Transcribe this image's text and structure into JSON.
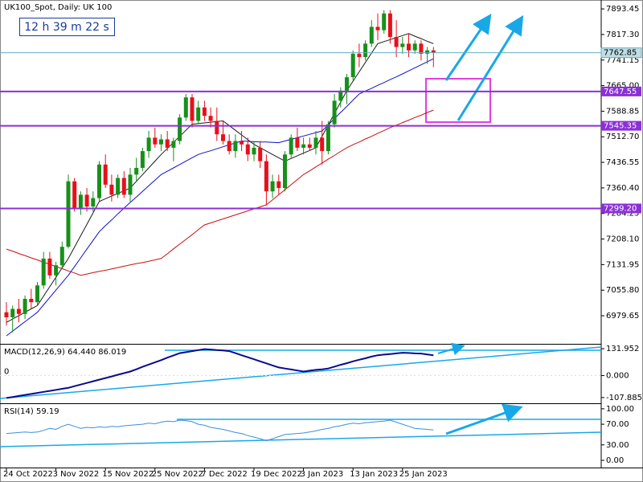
{
  "chart_data": [
    {
      "type": "candlestick",
      "title": "UK100_Spot, Daily:  UK 100",
      "timer": "12 h 39 m 22 s",
      "categories": [
        "24 Oct 2022",
        null,
        null,
        null,
        null,
        null,
        null,
        null,
        "3 Nov 2022",
        null,
        null,
        null,
        null,
        null,
        null,
        null,
        "15 Nov 2022",
        null,
        null,
        null,
        null,
        null,
        null,
        null,
        "25 Nov 2022",
        null,
        null,
        null,
        null,
        null,
        null,
        null,
        "7 Dec 2022",
        null,
        null,
        null,
        null,
        null,
        null,
        null,
        "19 Dec 2022",
        null,
        null,
        null,
        null,
        null,
        null,
        null,
        "3 Jan 2023",
        null,
        null,
        null,
        null,
        null,
        null,
        null,
        "13 Jan 2023",
        null,
        null,
        null,
        null,
        null,
        null,
        null,
        "25 Jan 2023",
        null,
        null,
        null,
        null,
        null
      ],
      "open": [
        6990,
        6975,
        7000,
        6985,
        7030,
        7020,
        7070,
        7150,
        7100,
        7130,
        7185,
        7380,
        7300,
        7340,
        7305,
        7330,
        7430,
        7370,
        7340,
        7390,
        7340,
        7400,
        7420,
        7470,
        7510,
        7490,
        7505,
        7480,
        7500,
        7570,
        7630,
        7560,
        7600,
        7575,
        7560,
        7520,
        7500,
        7470,
        7500,
        7490,
        7460,
        7480,
        7440,
        7350,
        7380,
        7360,
        7460,
        7510,
        7480,
        7490,
        7480,
        7510,
        7470,
        7550,
        7620,
        7650,
        7690,
        7760,
        7750,
        7790,
        7840,
        7830,
        7880,
        7810,
        7780,
        7790,
        7770,
        7790,
        7760,
        7770
      ],
      "high": [
        7020,
        7010,
        7030,
        7040,
        7060,
        7080,
        7170,
        7170,
        7140,
        7200,
        7400,
        7390,
        7350,
        7360,
        7350,
        7440,
        7460,
        7400,
        7400,
        7410,
        7420,
        7450,
        7480,
        7530,
        7540,
        7520,
        7530,
        7510,
        7580,
        7640,
        7640,
        7620,
        7620,
        7600,
        7600,
        7560,
        7520,
        7520,
        7530,
        7510,
        7500,
        7500,
        7460,
        7400,
        7400,
        7470,
        7520,
        7540,
        7510,
        7510,
        7530,
        7560,
        7560,
        7640,
        7660,
        7700,
        7770,
        7790,
        7800,
        7860,
        7880,
        7890,
        7890,
        7860,
        7810,
        7820,
        7800,
        7800,
        7780,
        7780
      ],
      "low": [
        6950,
        6930,
        6960,
        6970,
        7000,
        7010,
        7060,
        7090,
        7070,
        7120,
        7180,
        7290,
        7280,
        7290,
        7290,
        7320,
        7360,
        7320,
        7330,
        7330,
        7320,
        7380,
        7410,
        7450,
        7480,
        7470,
        7470,
        7440,
        7490,
        7560,
        7540,
        7550,
        7560,
        7540,
        7500,
        7490,
        7460,
        7450,
        7470,
        7440,
        7440,
        7420,
        7310,
        7330,
        7340,
        7350,
        7450,
        7470,
        7460,
        7470,
        7460,
        7430,
        7460,
        7540,
        7600,
        7610,
        7680,
        7720,
        7740,
        7780,
        7800,
        7820,
        7790,
        7750,
        7760,
        7750,
        7760,
        7740,
        7730,
        7720
      ],
      "close": [
        6975,
        7000,
        6985,
        7030,
        7020,
        7070,
        7150,
        7100,
        7130,
        7185,
        7380,
        7300,
        7340,
        7305,
        7330,
        7430,
        7370,
        7340,
        7390,
        7340,
        7400,
        7420,
        7470,
        7510,
        7490,
        7505,
        7480,
        7500,
        7570,
        7630,
        7560,
        7600,
        7575,
        7560,
        7520,
        7500,
        7470,
        7500,
        7490,
        7460,
        7480,
        7440,
        7350,
        7380,
        7360,
        7460,
        7510,
        7480,
        7490,
        7480,
        7510,
        7470,
        7550,
        7620,
        7650,
        7690,
        7760,
        7750,
        7790,
        7840,
        7830,
        7880,
        7810,
        7780,
        7790,
        7770,
        7790,
        7760,
        7770,
        7763
      ],
      "up_color": "#17901a",
      "down_color": "#e8101a",
      "moving_averages": [
        {
          "color": "#1a1a1a",
          "values": [
            6960,
            6970,
            6980,
            6990,
            7000,
            7010,
            7038,
            7066,
            7094,
            7122,
            7150,
            7184,
            7218,
            7252,
            7286,
            7320,
            7328,
            7336,
            7344,
            7352,
            7360,
            7380,
            7400,
            7420,
            7440,
            7460,
            7478,
            7496,
            7514,
            7532,
            7550,
            7552,
            7554,
            7556,
            7558,
            7560,
            7546,
            7532,
            7518,
            7504,
            7490,
            7480,
            7470,
            7460,
            7450,
            7440,
            7448,
            7456,
            7464,
            7472,
            7480,
            7514,
            7548,
            7582,
            7616,
            7650,
            7678,
            7706,
            7734,
            7762,
            7790,
            7796,
            7802,
            7808,
            7814,
            7820,
            7812,
            7805,
            7797,
            7790
          ]
        },
        {
          "color": "#1010c8",
          "values": [
            6920,
            6934,
            6948,
            6962,
            6976,
            6990,
            7012,
            7034,
            7056,
            7078,
            7100,
            7126,
            7152,
            7178,
            7204,
            7230,
            7248,
            7265,
            7283,
            7300,
            7317,
            7333,
            7350,
            7367,
            7383,
            7400,
            7410,
            7420,
            7430,
            7440,
            7450,
            7460,
            7466,
            7471,
            7477,
            7483,
            7489,
            7494,
            7500,
            7499,
            7498,
            7497,
            7497,
            7496,
            7495,
            7500,
            7505,
            7510,
            7515,
            7520,
            7525,
            7530,
            7548,
            7567,
            7585,
            7603,
            7622,
            7640,
            7649,
            7657,
            7666,
            7674,
            7683,
            7691,
            7700,
            7709,
            7718,
            7727,
            7736,
            7745
          ]
        },
        {
          "color": "#c81010",
          "values": [
            7178,
            7172,
            7165,
            7159,
            7152,
            7146,
            7139,
            7133,
            7126,
            7120,
            7113,
            7107,
            7100,
            7104,
            7108,
            7112,
            7115,
            7119,
            7123,
            7127,
            7131,
            7135,
            7138,
            7142,
            7146,
            7150,
            7164,
            7179,
            7193,
            7207,
            7221,
            7236,
            7250,
            7256,
            7262,
            7268,
            7274,
            7280,
            7286,
            7292,
            7298,
            7304,
            7310,
            7325,
            7340,
            7355,
            7370,
            7385,
            7400,
            7411,
            7423,
            7434,
            7446,
            7457,
            7469,
            7480,
            7489,
            7497,
            7506,
            7514,
            7523,
            7531,
            7540,
            7547,
            7555,
            7562,
            7570,
            7577,
            7585,
            7592
          ]
        }
      ],
      "current_price": 7762.85,
      "price_line_color": "#5fb0c0",
      "levels": [
        7647.55,
        7545.35,
        {
          "value": 7299.2,
          "label": "7299.20"
        }
      ],
      "level_color": "#8c2fd8",
      "ylim": [
        6896,
        7920
      ],
      "yticks": [
        7893.45,
        {
          "value": 7817.3,
          "label": "7817.30"
        },
        7741.15,
        {
          "value": 7665.0,
          "label": "7665.00"
        },
        7588.85,
        {
          "value": 7512.7,
          "label": "7512.70"
        },
        7436.55,
        {
          "value": 7360.4,
          "label": "7360.40"
        },
        7284.25,
        {
          "value": 7208.1,
          "label": "7208.10"
        },
        7131.95,
        {
          "value": 7055.8,
          "label": "7055.80"
        },
        6979.65
      ]
    },
    {
      "type": "line",
      "title": "MACD(12,26,9) 64.440 86.019",
      "color": "#0a0a8c",
      "values": [
        -110,
        -105,
        -100,
        -95,
        -90,
        -85,
        -80,
        -75,
        -70,
        -65,
        -60,
        -52,
        -44,
        -36,
        -28,
        -20,
        -12,
        -4,
        4,
        12,
        20,
        31,
        43,
        54,
        65,
        76,
        88,
        99,
        110,
        115,
        120,
        125,
        130,
        128,
        125,
        123,
        120,
        110,
        100,
        90,
        80,
        70,
        60,
        50,
        40,
        35,
        30,
        25,
        20,
        24,
        28,
        31,
        35,
        44,
        53,
        61,
        70,
        78,
        85,
        93,
        100,
        103,
        106,
        109,
        112,
        111,
        109,
        108,
        104,
        100
      ],
      "levels": [
        {
          "value": 0,
          "label": "0"
        }
      ],
      "ylim": [
        -128,
        148
      ],
      "yticks": [
        131.952,
        {
          "value": 0,
          "label": "0.000"
        },
        -107.885
      ]
    },
    {
      "type": "line",
      "title": "RSI(14) 59.19",
      "color": "#3a8fe0",
      "values": [
        52,
        53,
        54,
        55,
        54,
        55,
        58,
        62,
        60,
        66,
        70,
        66,
        62,
        64,
        63,
        65,
        64,
        66,
        65,
        67,
        68,
        69,
        70,
        72,
        71,
        74,
        76,
        75,
        78,
        77,
        75,
        70,
        68,
        64,
        62,
        60,
        57,
        54,
        52,
        48,
        45,
        42,
        38,
        42,
        46,
        50,
        51,
        52,
        53,
        55,
        57,
        60,
        62,
        65,
        67,
        70,
        72,
        71,
        73,
        74,
        75,
        76,
        78,
        74,
        70,
        66,
        62,
        61,
        60,
        59
      ],
      "ylim": [
        -14,
        106
      ],
      "yticks": [
        {
          "value": 100,
          "label": "100.00"
        },
        {
          "value": 70,
          "label": "70.00"
        },
        {
          "value": 30,
          "label": "30.00"
        },
        {
          "value": 0,
          "label": "0.00"
        }
      ]
    }
  ]
}
